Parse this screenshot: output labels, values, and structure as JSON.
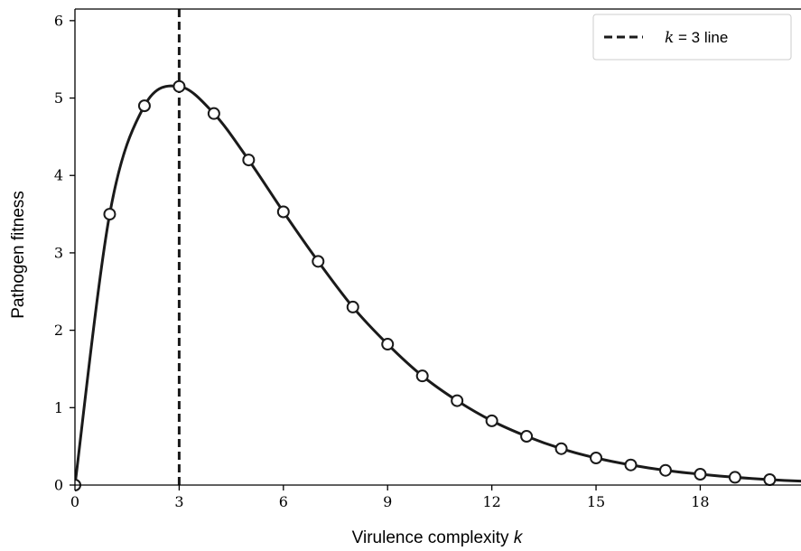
{
  "chart_data": {
    "type": "line",
    "xlabel_text": "Virulence complexity ",
    "xlabel_var": "k",
    "ylabel": "Pathogen fitness",
    "xlim": [
      0,
      20.9
    ],
    "ylim": [
      0,
      6.15
    ],
    "xticks": [
      0,
      3,
      6,
      9,
      12,
      15,
      18
    ],
    "yticks": [
      0,
      1,
      2,
      3,
      4,
      5,
      6
    ],
    "grid": false,
    "legend_position": "top-right",
    "series": [
      {
        "name": "",
        "style": "solid line with open circle markers",
        "color": "#1a1a1a",
        "x": [
          0,
          1,
          2,
          3,
          4,
          5,
          6,
          7,
          8,
          9,
          10,
          11,
          12,
          13,
          14,
          15,
          16,
          17,
          18,
          19,
          20
        ],
        "y": [
          0,
          3.5,
          4.9,
          5.15,
          4.8,
          4.2,
          3.53,
          2.89,
          2.3,
          1.82,
          1.41,
          1.09,
          0.83,
          0.63,
          0.47,
          0.35,
          0.26,
          0.19,
          0.14,
          0.1,
          0.07
        ]
      }
    ],
    "vline": {
      "x": 3,
      "style": "dashed",
      "color": "#1a1a1a"
    },
    "legend": {
      "var": "k",
      "text": " = 3 line"
    }
  }
}
